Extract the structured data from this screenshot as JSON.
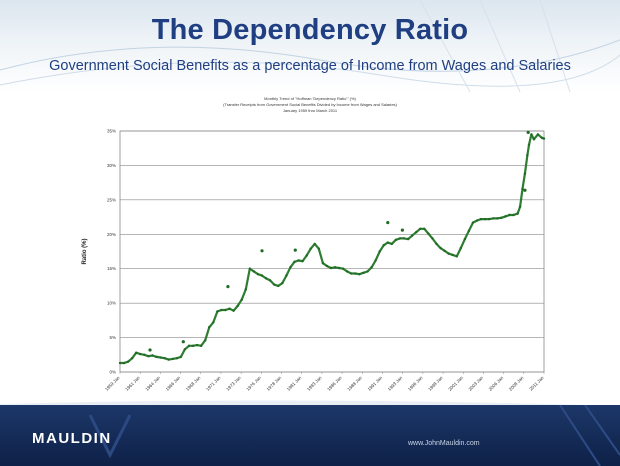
{
  "slide": {
    "title": "The Dependency Ratio",
    "subtitle": "Government Social Benefits as a percentage of Income  from Wages and Salaries",
    "footer_brand": "MAULDIN",
    "footer_url": "www.JohnMauldin.com",
    "colors": {
      "title": "#1f3f82",
      "series": "#2e7d32",
      "footer": "#132a57"
    }
  },
  "chart_data": {
    "type": "line",
    "heading_lines": [
      "Monthly Trend of \"Hoffman 'Dependency Ratio'\" (%)",
      "(Transfer Receipts from Government Social Benefits Divided by Income from Wages and Salaries)",
      "January 1959 thru March 2011"
    ],
    "ylabel": "Ratio (%)",
    "ylim": [
      0,
      35
    ],
    "yticks": [
      0,
      5,
      10,
      15,
      20,
      25,
      30,
      35
    ],
    "ytick_labels": [
      "0%",
      "5%",
      "10%",
      "15%",
      "20%",
      "25%",
      "30%",
      "35%"
    ],
    "xlim": [
      1959.0,
      2011.25
    ],
    "xtick_labels": [
      "1959 Jan",
      "1961 Jan",
      "1964 Jan",
      "1966 Jan",
      "1968 Jan",
      "1971 Jan",
      "1973 Jan",
      "1976 Jan",
      "1978 Jan",
      "1981 Jan",
      "1983 Jan",
      "1986 Jan",
      "1988 Jan",
      "1991 Jan",
      "1993 Jan",
      "1996 Jan",
      "1998 Jan",
      "2001 Jan",
      "2003 Jan",
      "2006 Jan",
      "2008 Jan",
      "2011 Jan"
    ],
    "grid": true,
    "legend": "none",
    "series": [
      {
        "x": [
          1959.0,
          1959.5,
          1960.0,
          1960.5,
          1961.0,
          1961.5,
          1962.0,
          1962.5,
          1963.0,
          1963.5,
          1964.0,
          1964.5,
          1965.0,
          1965.5,
          1966.0,
          1966.5,
          1967.0,
          1967.5,
          1968.0,
          1968.5,
          1969.0,
          1969.5,
          1970.0,
          1970.5,
          1971.0,
          1971.5,
          1972.0,
          1972.5,
          1973.0,
          1973.5,
          1974.0,
          1974.5,
          1975.0,
          1975.5,
          1976.0,
          1976.5,
          1977.0,
          1977.5,
          1978.0,
          1978.5,
          1979.0,
          1979.5,
          1980.0,
          1980.5,
          1981.0,
          1981.5,
          1982.0,
          1982.5,
          1983.0,
          1983.5,
          1984.0,
          1984.5,
          1985.0,
          1985.5,
          1986.0,
          1986.5,
          1987.0,
          1987.5,
          1988.0,
          1988.5,
          1989.0,
          1989.5,
          1990.0,
          1990.5,
          1991.0,
          1991.5,
          1992.0,
          1992.5,
          1993.0,
          1993.5,
          1994.0,
          1994.5,
          1995.0,
          1995.5,
          1996.0,
          1996.5,
          1997.0,
          1997.5,
          1998.0,
          1998.5,
          1999.0,
          1999.5,
          2000.0,
          2000.5,
          2001.0,
          2001.5,
          2002.0,
          2002.5,
          2003.0,
          2003.5,
          2004.0,
          2004.5,
          2005.0,
          2005.5,
          2006.0,
          2006.5,
          2007.0,
          2007.5,
          2008.0,
          2008.3,
          2008.6,
          2008.9,
          2009.2,
          2009.4,
          2009.7,
          2010.0,
          2010.5,
          2011.0,
          2011.25
        ],
        "values": [
          1.3,
          1.3,
          1.5,
          2.0,
          2.8,
          2.6,
          2.5,
          2.3,
          2.4,
          2.2,
          2.1,
          2.0,
          1.8,
          1.9,
          2.0,
          2.2,
          3.3,
          3.8,
          3.8,
          3.9,
          3.8,
          4.6,
          6.5,
          7.2,
          8.8,
          9.0,
          9.0,
          9.2,
          8.9,
          9.6,
          10.5,
          12.0,
          15.0,
          14.6,
          14.2,
          14.0,
          13.6,
          13.3,
          12.7,
          12.5,
          12.9,
          14.0,
          15.2,
          16.0,
          16.2,
          16.1,
          16.9,
          17.9,
          18.6,
          17.9,
          15.8,
          15.4,
          15.1,
          15.2,
          15.1,
          15.0,
          14.6,
          14.3,
          14.3,
          14.2,
          14.4,
          14.6,
          15.2,
          16.2,
          17.5,
          18.4,
          18.8,
          18.6,
          19.2,
          19.4,
          19.4,
          19.3,
          19.8,
          20.3,
          20.8,
          20.8,
          20.1,
          19.4,
          18.6,
          18.0,
          17.6,
          17.2,
          17.0,
          16.8,
          18.0,
          19.3,
          20.5,
          21.7,
          22.0,
          22.2,
          22.2,
          22.2,
          22.3,
          22.3,
          22.4,
          22.6,
          22.8,
          22.8,
          23.0,
          24.0,
          26.6,
          28.8,
          31.5,
          33.0,
          34.5,
          33.8,
          34.5,
          34.0,
          33.9
        ],
        "markers": [
          [
            1962.7,
            3.2
          ],
          [
            1966.8,
            4.4
          ],
          [
            1972.3,
            12.4
          ],
          [
            1976.5,
            17.6
          ],
          [
            1980.6,
            17.7
          ],
          [
            1992.0,
            21.7
          ],
          [
            1993.8,
            20.6
          ],
          [
            2008.9,
            26.4
          ],
          [
            2009.3,
            34.8
          ]
        ]
      }
    ]
  }
}
